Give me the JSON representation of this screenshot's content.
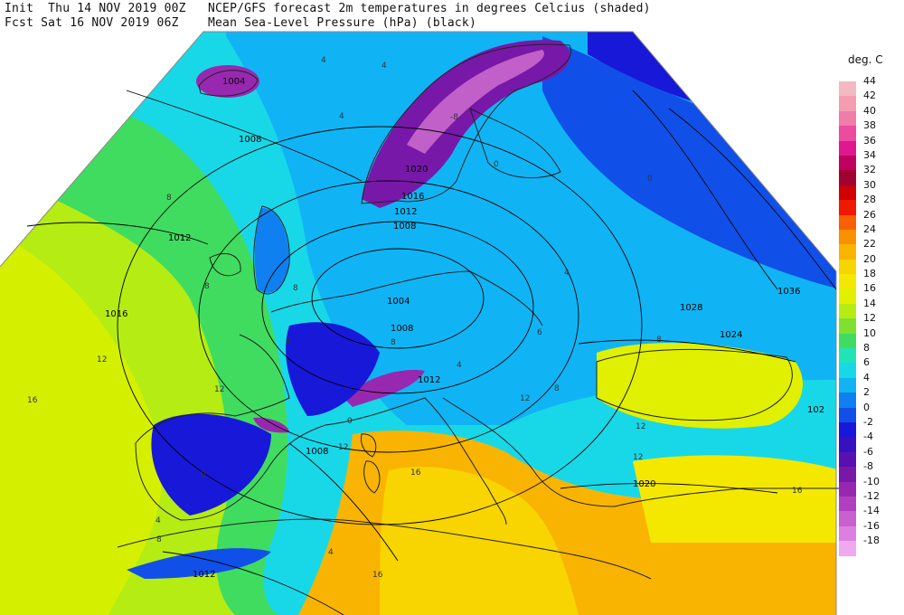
{
  "header": {
    "line1_left": "Init  Thu 14 NOV 2019 00Z",
    "line1_right": "NCEP/GFS forecast 2m temperatures in degrees Celcius (shaded)",
    "line2_left": "Fcst Sat 16 NOV 2019 06Z",
    "line2_right": "Mean Sea-Level Pressure (hPa) (black)"
  },
  "colorbar": {
    "title": "deg. C",
    "items": [
      {
        "label": "44",
        "color": "#f4b8c0"
      },
      {
        "label": "42",
        "color": "#f49cb0"
      },
      {
        "label": "40",
        "color": "#f07ca8"
      },
      {
        "label": "38",
        "color": "#ec4ca0"
      },
      {
        "label": "36",
        "color": "#e01890"
      },
      {
        "label": "34",
        "color": "#c00060"
      },
      {
        "label": "32",
        "color": "#a00030"
      },
      {
        "label": "30",
        "color": "#d00000"
      },
      {
        "label": "28",
        "color": "#f01800"
      },
      {
        "label": "26",
        "color": "#f86000"
      },
      {
        "label": "24",
        "color": "#f89000"
      },
      {
        "label": "22",
        "color": "#f8b400"
      },
      {
        "label": "20",
        "color": "#f8d400"
      },
      {
        "label": "18",
        "color": "#f4e800"
      },
      {
        "label": "16",
        "color": "#e0f000"
      },
      {
        "label": "14",
        "color": "#b4ec14"
      },
      {
        "label": "12",
        "color": "#80e030"
      },
      {
        "label": "10",
        "color": "#40dc60"
      },
      {
        "label": "8",
        "color": "#20e4b8"
      },
      {
        "label": "6",
        "color": "#18d8e8"
      },
      {
        "label": "4",
        "color": "#10b4f4"
      },
      {
        "label": "2",
        "color": "#1080f0"
      },
      {
        "label": "0",
        "color": "#1050e8"
      },
      {
        "label": "-2",
        "color": "#1818d8"
      },
      {
        "label": "-4",
        "color": "#3810c0"
      },
      {
        "label": "-6",
        "color": "#5810b0"
      },
      {
        "label": "-8",
        "color": "#7818a8"
      },
      {
        "label": "-10",
        "color": "#9828b0"
      },
      {
        "label": "-12",
        "color": "#b040c0"
      },
      {
        "label": "-14",
        "color": "#c860d0"
      },
      {
        "label": "-16",
        "color": "#dc80e0"
      },
      {
        "label": "-18",
        "color": "#f0a8f0"
      }
    ]
  },
  "isobar_labels": [
    "1004",
    "1008",
    "1012",
    "1016",
    "1020",
    "1016",
    "1012",
    "1008",
    "1004",
    "1008",
    "1012",
    "1008",
    "1012",
    "1020",
    "1024",
    "1028",
    "1036",
    "102"
  ],
  "temperature_labels": [
    "4",
    "4",
    "4",
    "8",
    "8",
    "8",
    "4",
    "6",
    "12",
    "12",
    "16",
    "16",
    "16",
    "12",
    "12",
    "8",
    "0",
    "-8",
    "0",
    "4",
    "4",
    "8",
    "12",
    "12",
    "16",
    "4",
    "8",
    "0",
    "4",
    "8",
    "0"
  ],
  "colors": {
    "ocean_warm": "#b4ec14",
    "sea_mild": "#40dc60",
    "cool": "#18d8e8",
    "cold": "#10b4f4",
    "freezing": "#1050e8",
    "very_cold": "#3810c0",
    "mountain_cold": "#9828b0",
    "africa_hot": "#f8b400",
    "isobar": "#000000",
    "coast": "#222222"
  }
}
